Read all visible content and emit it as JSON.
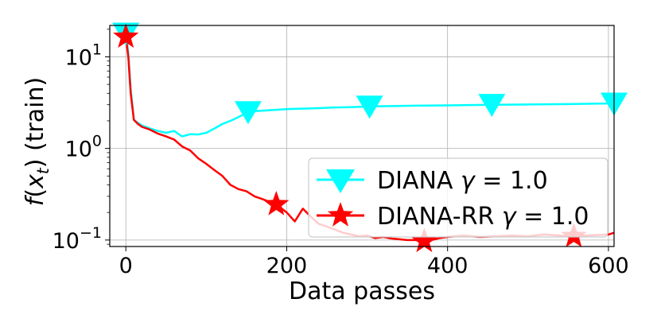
{
  "chart_data": {
    "type": "line",
    "xlabel": "Data passes",
    "ylabel": "f(x_t) (train)",
    "ylabel_parts": {
      "f": "f",
      "open": "(",
      "x": "x",
      "sub": "t",
      "close": ")",
      "rest": " (train)"
    },
    "y_scale": "log",
    "xlim": [
      -20,
      607
    ],
    "ylim": [
      0.085,
      22
    ],
    "grid": true,
    "legend_position": "center-right",
    "x_ticks": [
      0,
      200,
      400,
      600
    ],
    "x_tick_labels": [
      "0",
      "200",
      "400",
      "600"
    ],
    "y_ticks": [
      0.1,
      1,
      10
    ],
    "y_tick_labels": [
      {
        "base": "10",
        "exp": "−1"
      },
      {
        "base": "10",
        "exp": "0"
      },
      {
        "base": "10",
        "exp": "1"
      }
    ],
    "series": [
      {
        "name": "DIANA γ = 1.0",
        "legend_label": {
          "text": "DIANA ",
          "gamma": "γ",
          "value": " = 1.0"
        },
        "color": "#00ffff",
        "marker": "triangle-down",
        "x": [
          0,
          3,
          6,
          10,
          15,
          20,
          30,
          40,
          50,
          60,
          70,
          80,
          90,
          100,
          110,
          120,
          130,
          140,
          152,
          160,
          175,
          190,
          205,
          220,
          240,
          260,
          280,
          303,
          330,
          360,
          400,
          455,
          500,
          550,
          607
        ],
        "y": [
          18,
          11,
          4.5,
          2.05,
          1.9,
          1.78,
          1.65,
          1.55,
          1.48,
          1.55,
          1.35,
          1.43,
          1.42,
          1.48,
          1.65,
          1.85,
          2.0,
          2.2,
          2.5,
          2.55,
          2.6,
          2.65,
          2.7,
          2.72,
          2.75,
          2.8,
          2.82,
          2.87,
          2.9,
          2.93,
          2.95,
          3.0,
          3.02,
          3.05,
          3.1
        ],
        "marker_x": [
          0,
          152,
          303,
          455,
          607
        ],
        "marker_y": [
          18,
          2.5,
          2.87,
          3.0,
          3.1
        ]
      },
      {
        "name": "DIANA-RR γ = 1.0",
        "legend_label": {
          "text": "DIANA-RR ",
          "gamma": "γ",
          "value": " = 1.0"
        },
        "color": "#ff0000",
        "marker": "star",
        "x": [
          0,
          3,
          6,
          10,
          15,
          20,
          30,
          40,
          50,
          60,
          70,
          80,
          90,
          100,
          110,
          120,
          130,
          140,
          150,
          160,
          170,
          187,
          200,
          210,
          220,
          230,
          240,
          250,
          260,
          270,
          280,
          290,
          300,
          310,
          320,
          330,
          340,
          350,
          360,
          371,
          380,
          390,
          400,
          420,
          440,
          460,
          480,
          500,
          520,
          540,
          557,
          580,
          600,
          607
        ],
        "y": [
          16.5,
          10,
          4.0,
          2.05,
          1.85,
          1.72,
          1.6,
          1.45,
          1.35,
          1.25,
          1.05,
          0.95,
          0.78,
          0.68,
          0.58,
          0.5,
          0.4,
          0.36,
          0.34,
          0.3,
          0.28,
          0.245,
          0.2,
          0.16,
          0.22,
          0.18,
          0.15,
          0.14,
          0.13,
          0.12,
          0.115,
          0.11,
          0.112,
          0.105,
          0.108,
          0.104,
          0.102,
          0.1,
          0.1,
          0.097,
          0.1,
          0.105,
          0.108,
          0.112,
          0.108,
          0.11,
          0.112,
          0.11,
          0.115,
          0.112,
          0.11,
          0.113,
          0.115,
          0.12
        ],
        "marker_x": [
          0,
          187,
          371,
          557
        ],
        "marker_y": [
          16.5,
          0.245,
          0.097,
          0.11
        ]
      }
    ]
  }
}
